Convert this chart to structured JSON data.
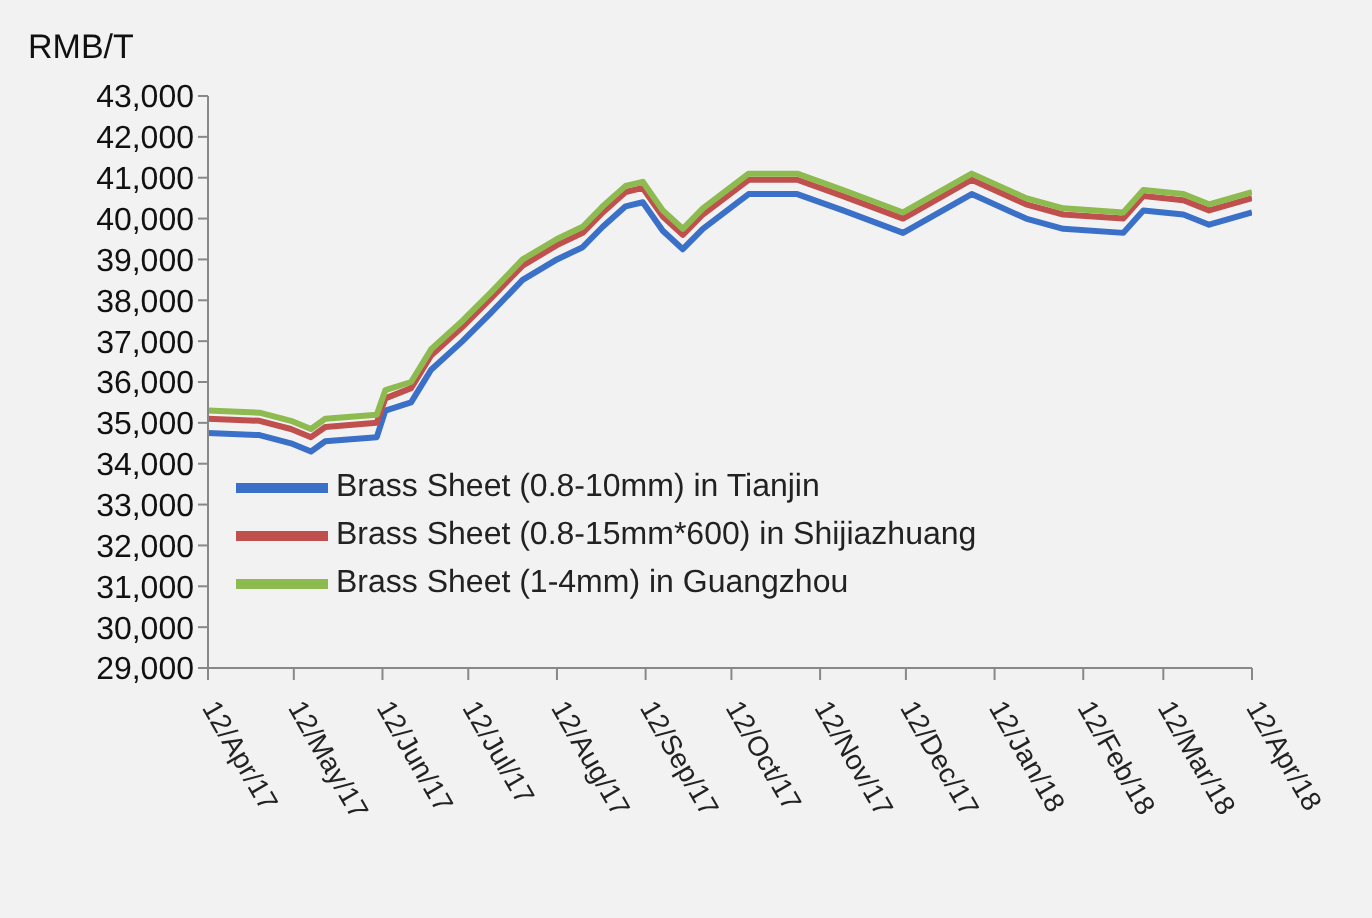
{
  "chart_data": {
    "type": "line",
    "ylabel": "RMB/T",
    "x": [
      "2017-04-12",
      "2017-04-30",
      "2017-05-11",
      "2017-05-18",
      "2017-05-23",
      "2017-06-10",
      "2017-06-13",
      "2017-06-22",
      "2017-06-29",
      "2017-07-10",
      "2017-07-20",
      "2017-07-31",
      "2017-08-12",
      "2017-08-21",
      "2017-08-28",
      "2017-09-05",
      "2017-09-11",
      "2017-09-18",
      "2017-09-25",
      "2017-10-02",
      "2017-10-18",
      "2017-11-04",
      "2017-11-20",
      "2017-12-11",
      "2018-01-04",
      "2018-01-23",
      "2018-02-05",
      "2018-02-26",
      "2018-03-05",
      "2018-03-19",
      "2018-03-28",
      "2018-04-12"
    ],
    "series": [
      {
        "name": "Brass Sheet (0.8-10mm) in Tianjin",
        "color": "#3a70c8",
        "values": [
          34750,
          34700,
          34500,
          34300,
          34550,
          34650,
          35300,
          35500,
          36300,
          37000,
          37700,
          38500,
          39000,
          39300,
          39800,
          40300,
          40400,
          39700,
          39250,
          39750,
          40600,
          40600,
          40200,
          39650,
          40600,
          40000,
          39750,
          39650,
          40200,
          40100,
          39850,
          40150
        ]
      },
      {
        "name": "Brass Sheet (0.8-15mm*600) in Shijiazhuang",
        "color": "#c0504d",
        "values": [
          35100,
          35050,
          34850,
          34650,
          34900,
          35000,
          35600,
          35850,
          36650,
          37350,
          38050,
          38850,
          39350,
          39650,
          40150,
          40650,
          40750,
          40050,
          39600,
          40100,
          40950,
          40950,
          40550,
          40000,
          40950,
          40350,
          40100,
          40000,
          40550,
          40450,
          40200,
          40500
        ]
      },
      {
        "name": "Brass Sheet (1-4mm) in Guangzhou",
        "color": "#8dbb4f",
        "values": [
          35300,
          35250,
          35050,
          34850,
          35100,
          35200,
          35800,
          36000,
          36800,
          37500,
          38200,
          39000,
          39500,
          39800,
          40300,
          40800,
          40900,
          40200,
          39750,
          40250,
          41100,
          41100,
          40700,
          40150,
          41100,
          40500,
          40250,
          40150,
          40700,
          40600,
          40350,
          40650
        ]
      }
    ],
    "xlim": [
      "2017-04-12",
      "2018-04-12"
    ],
    "xticks": [
      {
        "value": "2017-04-12",
        "label": "12/Apr/17"
      },
      {
        "value": "2017-05-12",
        "label": "12/May/17"
      },
      {
        "value": "2017-06-12",
        "label": "12/Jun/17"
      },
      {
        "value": "2017-07-12",
        "label": "12/Jul/17"
      },
      {
        "value": "2017-08-12",
        "label": "12/Aug/17"
      },
      {
        "value": "2017-09-12",
        "label": "12/Sep/17"
      },
      {
        "value": "2017-10-12",
        "label": "12/Oct/17"
      },
      {
        "value": "2017-11-12",
        "label": "12/Nov/17"
      },
      {
        "value": "2017-12-12",
        "label": "12/Dec/17"
      },
      {
        "value": "2018-01-12",
        "label": "12/Jan/18"
      },
      {
        "value": "2018-02-12",
        "label": "12/Feb/18"
      },
      {
        "value": "2018-03-12",
        "label": "12/Mar/18"
      },
      {
        "value": "2018-04-12",
        "label": "12/Apr/18"
      }
    ],
    "ylim": [
      29000,
      43000
    ],
    "yticks": [
      {
        "value": 29000,
        "label": "29,000"
      },
      {
        "value": 30000,
        "label": "30,000"
      },
      {
        "value": 31000,
        "label": "31,000"
      },
      {
        "value": 32000,
        "label": "32,000"
      },
      {
        "value": 33000,
        "label": "33,000"
      },
      {
        "value": 34000,
        "label": "34,000"
      },
      {
        "value": 35000,
        "label": "35,000"
      },
      {
        "value": 36000,
        "label": "36,000"
      },
      {
        "value": 37000,
        "label": "37,000"
      },
      {
        "value": 38000,
        "label": "38,000"
      },
      {
        "value": 39000,
        "label": "39,000"
      },
      {
        "value": 40000,
        "label": "40,000"
      },
      {
        "value": 41000,
        "label": "41,000"
      },
      {
        "value": 42000,
        "label": "42,000"
      },
      {
        "value": 43000,
        "label": "43,000"
      }
    ],
    "grid": false,
    "legend": "bottom left",
    "marker": "none",
    "line_style": "solid"
  }
}
